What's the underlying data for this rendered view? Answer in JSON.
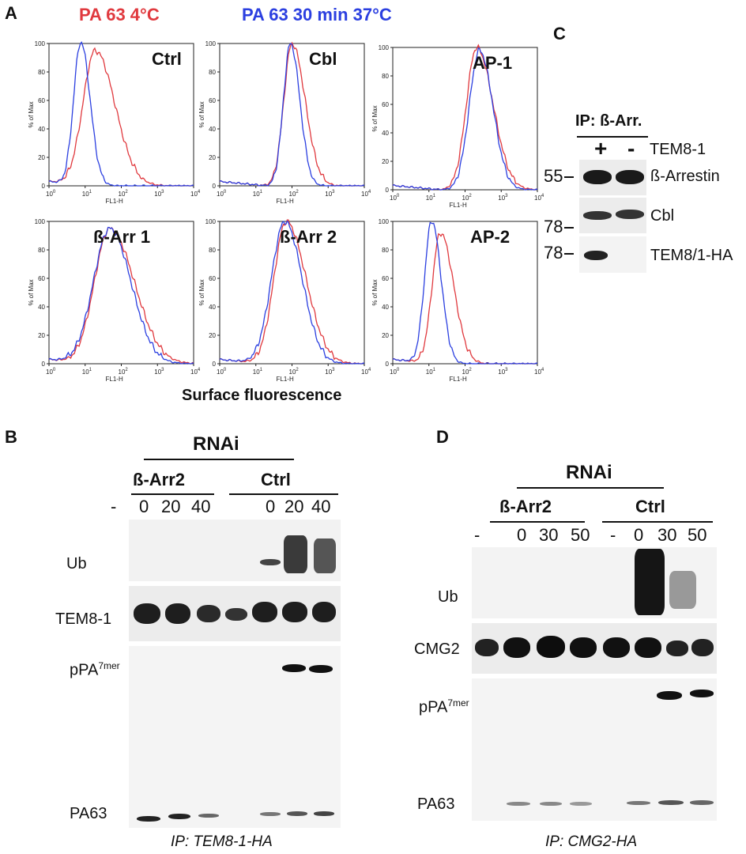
{
  "panels": {
    "A": "A",
    "B": "B",
    "C": "C",
    "D": "D"
  },
  "legend": {
    "red": "PA 63 4°C",
    "blue": "PA 63 30 min 37°C",
    "red_color": "#e0393e",
    "blue_color": "#2b3fe0"
  },
  "histograms": [
    {
      "title": "Ctrl"
    },
    {
      "title": "Cbl"
    },
    {
      "title": "AP-1"
    },
    {
      "title": "ß-Arr 1"
    },
    {
      "title": "ß-Arr 2"
    },
    {
      "title": "AP-2"
    }
  ],
  "axes": {
    "ylabel": "% of Max",
    "xlabel": "FL1-H",
    "xlabel_big": "Surface fluorescence",
    "yticks": [
      "0",
      "20",
      "40",
      "60",
      "80",
      "100"
    ],
    "xticks": [
      "10",
      "10",
      "10",
      "10",
      "10"
    ],
    "xexp": [
      "0",
      "1",
      "2",
      "3",
      "4"
    ]
  },
  "panelB": {
    "rnai": "RNAi",
    "group1": "ß-Arr2",
    "group2": "Ctrl",
    "lanes": [
      "-",
      "0",
      "20",
      "40",
      "0",
      "20",
      "40"
    ],
    "rows": [
      "Ub",
      "TEM8-1",
      "pPA",
      "PA63"
    ],
    "row_sup": "7mer",
    "caption": "IP: TEM8-1-HA"
  },
  "panelC": {
    "ip": "IP: ß-Arr.",
    "plus": "+",
    "minus": "-",
    "tem": "TEM8-1",
    "rows": [
      "ß-Arrestin",
      "Cbl",
      "TEM8/1-HA"
    ],
    "mw": [
      "55",
      "78",
      "78"
    ]
  },
  "panelD": {
    "rnai": "RNAi",
    "group1": "ß-Arr2",
    "group2": "Ctrl",
    "lanes": [
      "-",
      "0",
      "30",
      "50",
      "-",
      "0",
      "30",
      "50"
    ],
    "rows": [
      "Ub",
      "CMG2",
      "pPA",
      "PA63"
    ],
    "row_sup": "7mer",
    "caption": "IP: CMG2-HA"
  }
}
